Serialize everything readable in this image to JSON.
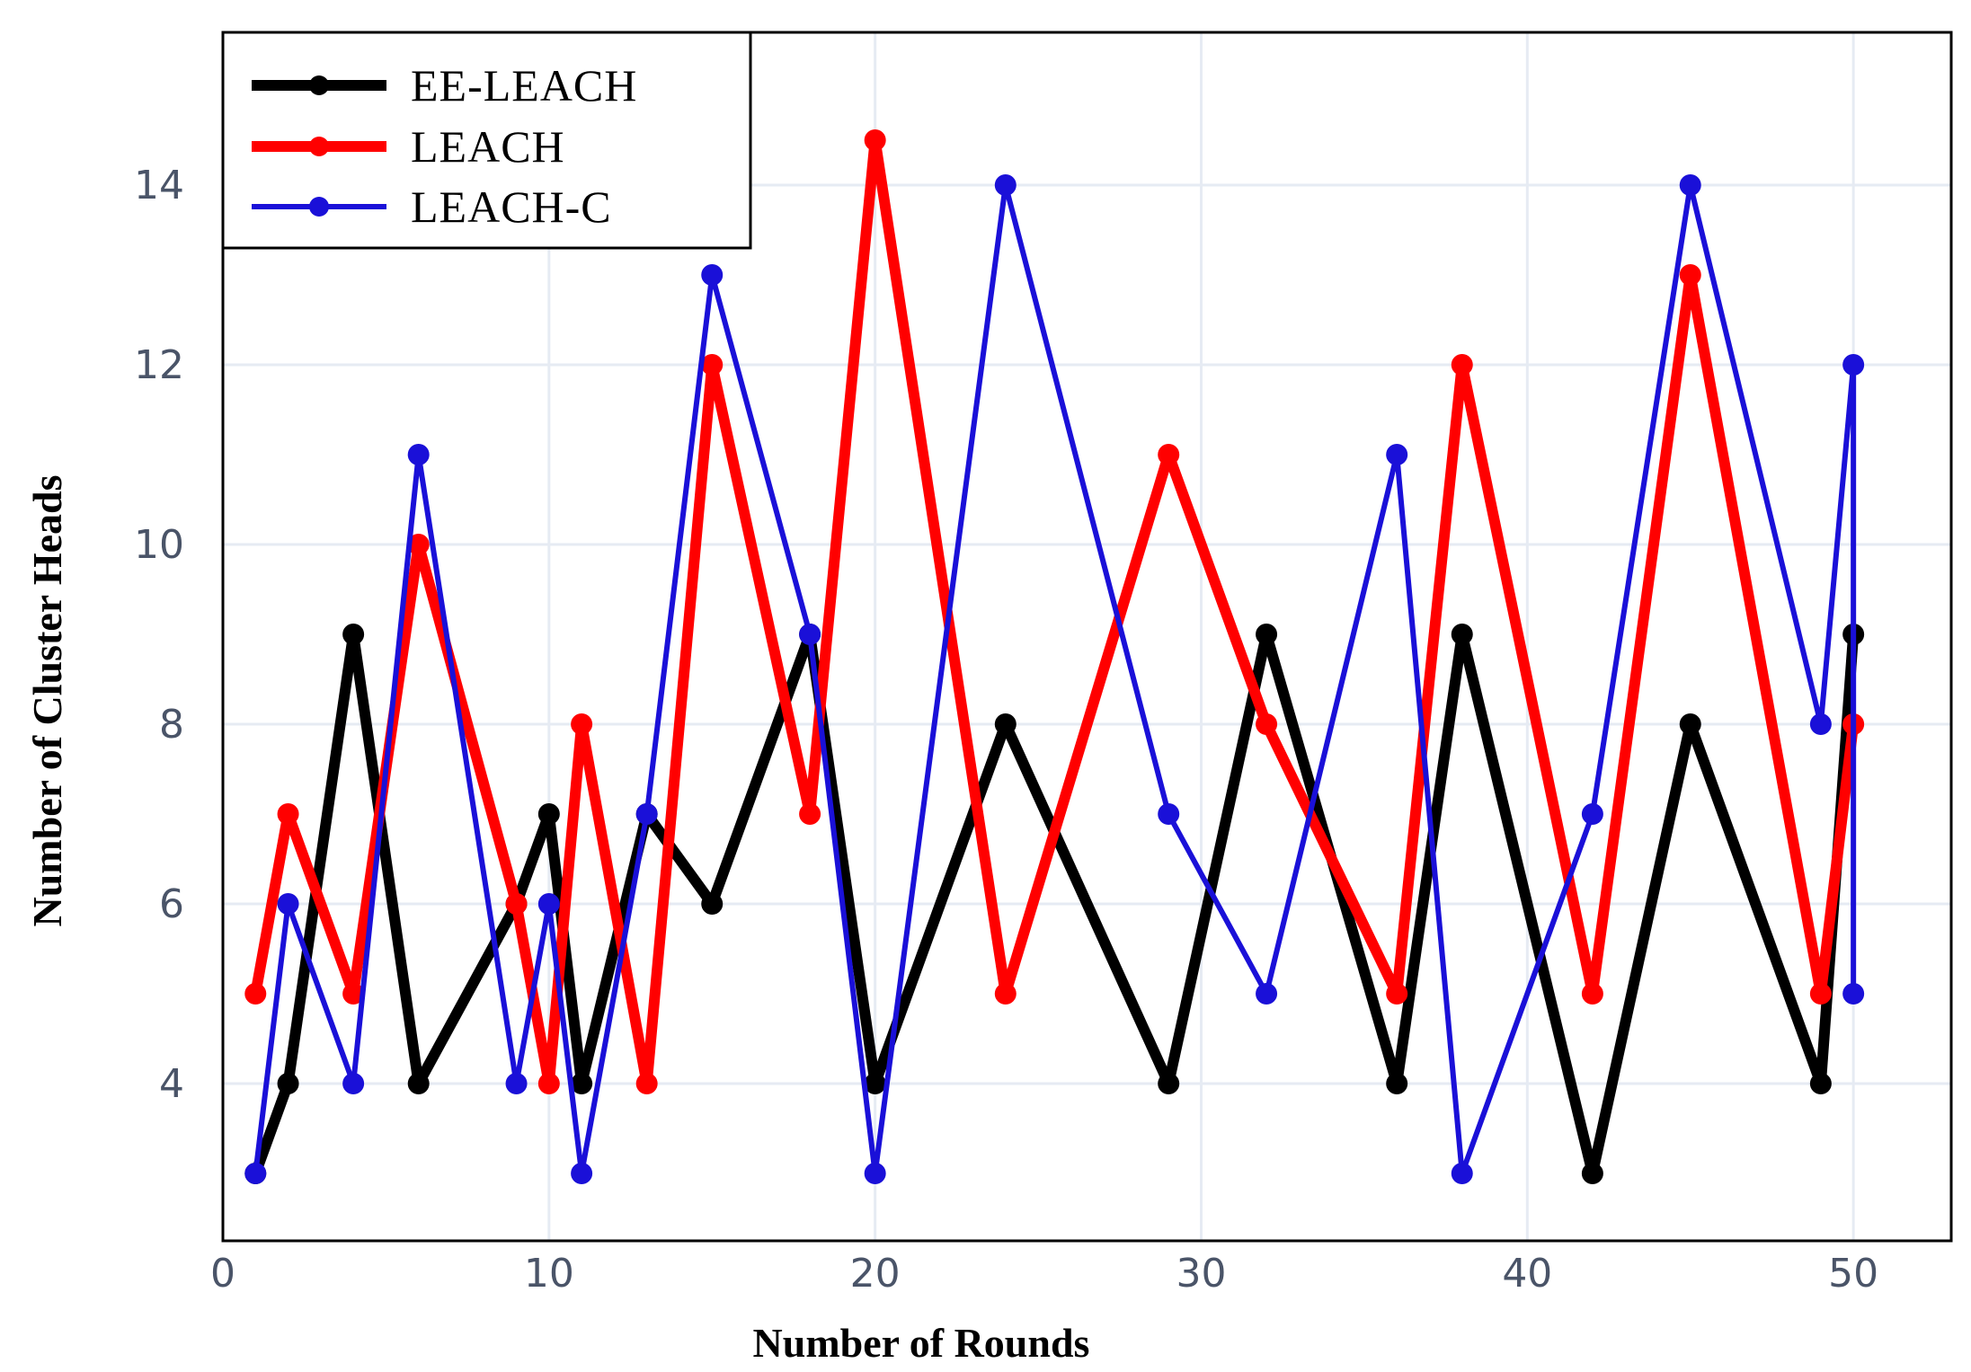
{
  "chart_data": {
    "type": "line",
    "xlabel": "Number of Rounds",
    "ylabel": "Number of Cluster Heads",
    "xlim": [
      0,
      53
    ],
    "ylim": [
      2.25,
      15.7
    ],
    "xticks": [
      0,
      10,
      20,
      30,
      40,
      50
    ],
    "yticks": [
      4,
      6,
      8,
      10,
      12,
      14
    ],
    "grid": true,
    "legend_position": "top-left",
    "series": [
      {
        "name": "EE-LEACH",
        "color": "#000000",
        "x": [
          1,
          2,
          4,
          6,
          9,
          10,
          11,
          13,
          15,
          18,
          20,
          24,
          29,
          32,
          36,
          38,
          42,
          45,
          49,
          50
        ],
        "y": [
          3,
          4,
          9,
          4,
          6,
          7,
          4,
          7,
          6,
          9,
          4,
          8,
          4,
          9,
          4,
          9,
          3,
          8,
          4,
          9
        ]
      },
      {
        "name": "LEACH",
        "color": "#ff0000",
        "x": [
          1,
          2,
          4,
          6,
          9,
          10,
          11,
          13,
          15,
          18,
          20,
          24,
          29,
          32,
          36,
          38,
          42,
          45,
          49,
          50
        ],
        "y": [
          5,
          7,
          5,
          10,
          6,
          4,
          8,
          4,
          12,
          7,
          14.5,
          5,
          11,
          8,
          5,
          12,
          5,
          13,
          5,
          8
        ]
      },
      {
        "name": "LEACH-C",
        "color": "#1a10d8",
        "x": [
          1,
          2,
          4,
          6,
          9,
          10,
          11,
          13,
          15,
          18,
          20,
          24,
          29,
          32,
          36,
          38,
          42,
          45,
          49,
          50,
          50
        ],
        "y": [
          3,
          6,
          4,
          11,
          4,
          6,
          3,
          7,
          13,
          9,
          3,
          14,
          7,
          5,
          11,
          3,
          7,
          14,
          8,
          12,
          5
        ]
      }
    ]
  }
}
